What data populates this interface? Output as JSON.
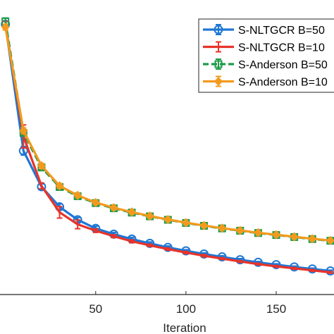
{
  "chart_data": {
    "type": "line",
    "title": "",
    "xlabel": "Iteration",
    "ylabel": "",
    "xlim": [
      -3,
      182
    ],
    "ylim": [
      0,
      1
    ],
    "x_ticks": [
      50,
      100,
      150
    ],
    "grid": false,
    "legend_position": "top-right",
    "series": [
      {
        "name": "S-NLTGCR B=50",
        "color": "#1f77d4",
        "marker": "circle",
        "dash": "solid",
        "x": [
          0,
          10,
          20,
          30,
          40,
          50,
          60,
          70,
          80,
          90,
          100,
          110,
          120,
          130,
          140,
          150,
          160,
          170,
          180
        ],
        "y": [
          0.94,
          0.5,
          0.375,
          0.305,
          0.26,
          0.23,
          0.21,
          0.193,
          0.178,
          0.164,
          0.152,
          0.141,
          0.131,
          0.121,
          0.112,
          0.104,
          0.096,
          0.089,
          0.082
        ],
        "err": [
          0.01,
          0.015,
          0.01,
          0.01,
          0.008,
          0.008,
          0.006,
          0.006,
          0.005,
          0.005,
          0.004,
          0.004,
          0.004,
          0.004,
          0.003,
          0.003,
          0.003,
          0.003,
          0.003
        ]
      },
      {
        "name": "S-NLTGCR B=10",
        "color": "#e8332a",
        "marker": "errorbar",
        "dash": "solid",
        "x": [
          0,
          10,
          20,
          30,
          40,
          50,
          60,
          70,
          80,
          90,
          100,
          110,
          120,
          130,
          140,
          150,
          160,
          170,
          180
        ],
        "y": [
          0.94,
          0.55,
          0.378,
          0.286,
          0.244,
          0.222,
          0.203,
          0.185,
          0.171,
          0.158,
          0.146,
          0.135,
          0.125,
          0.115,
          0.106,
          0.098,
          0.091,
          0.084,
          0.077
        ],
        "err": [
          0.01,
          0.04,
          0.01,
          0.02,
          0.015,
          0.006,
          0.005,
          0.005,
          0.004,
          0.004,
          0.004,
          0.004,
          0.003,
          0.003,
          0.003,
          0.003,
          0.003,
          0.003,
          0.003
        ]
      },
      {
        "name": "S-Anderson B=50",
        "color": "#1e9a4a",
        "marker": "square",
        "dash": "dashed",
        "x": [
          0,
          10,
          20,
          30,
          40,
          50,
          60,
          70,
          80,
          90,
          100,
          110,
          120,
          130,
          140,
          150,
          160,
          170,
          180
        ],
        "y": [
          0.95,
          0.562,
          0.442,
          0.374,
          0.342,
          0.318,
          0.3,
          0.285,
          0.272,
          0.26,
          0.249,
          0.239,
          0.23,
          0.222,
          0.214,
          0.207,
          0.2,
          0.193,
          0.187
        ],
        "err": [
          0.012,
          0.01,
          0.008,
          0.008,
          0.006,
          0.006,
          0.005,
          0.005,
          0.005,
          0.004,
          0.004,
          0.004,
          0.004,
          0.004,
          0.003,
          0.003,
          0.003,
          0.003,
          0.003
        ]
      },
      {
        "name": "S-Anderson B=10",
        "color": "#f39a1e",
        "marker": "diamond",
        "dash": "solid",
        "x": [
          0,
          10,
          20,
          30,
          40,
          50,
          60,
          70,
          80,
          90,
          100,
          110,
          120,
          130,
          140,
          150,
          160,
          170,
          180
        ],
        "y": [
          0.93,
          0.57,
          0.448,
          0.378,
          0.345,
          0.32,
          0.302,
          0.287,
          0.273,
          0.261,
          0.25,
          0.24,
          0.231,
          0.223,
          0.215,
          0.208,
          0.201,
          0.194,
          0.188
        ],
        "err": [
          0.01,
          0.01,
          0.008,
          0.008,
          0.006,
          0.006,
          0.005,
          0.005,
          0.005,
          0.004,
          0.004,
          0.004,
          0.004,
          0.004,
          0.003,
          0.003,
          0.003,
          0.003,
          0.003
        ]
      }
    ]
  }
}
